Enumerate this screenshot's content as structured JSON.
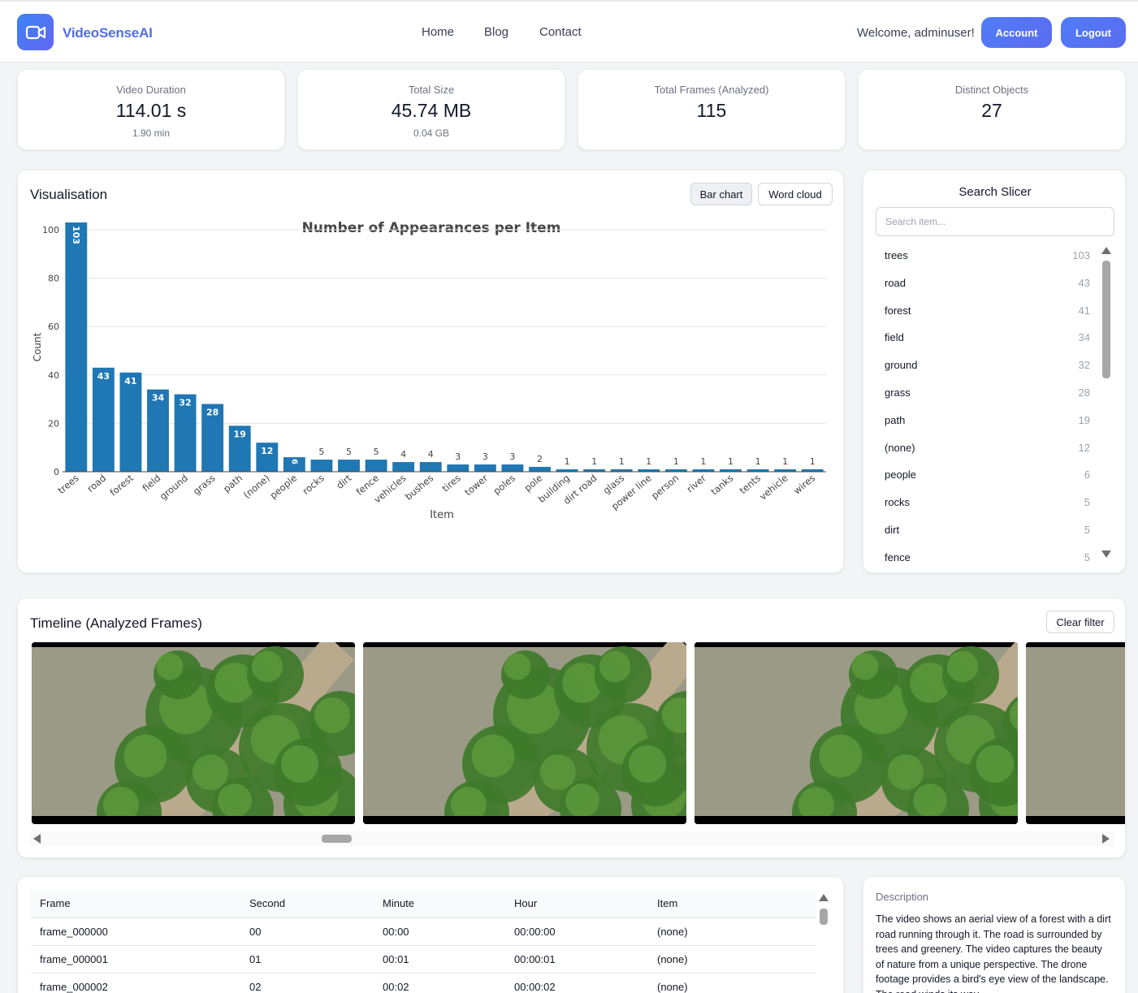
{
  "header": {
    "brand": "VideoSenseAI",
    "nav": [
      "Home",
      "Blog",
      "Contact"
    ],
    "welcome": "Welcome, adminuser!",
    "account_label": "Account",
    "logout_label": "Logout"
  },
  "stats": [
    {
      "label": "Video Duration",
      "value": "114.01 s",
      "sub": "1.90 min"
    },
    {
      "label": "Total Size",
      "value": "45.74 MB",
      "sub": "0.04 GB"
    },
    {
      "label": "Total Frames (Analyzed)",
      "value": "115",
      "sub": ""
    },
    {
      "label": "Distinct Objects",
      "value": "27",
      "sub": ""
    }
  ],
  "visualisation": {
    "title": "Visualisation",
    "bar_chart_label": "Bar chart",
    "word_cloud_label": "Word cloud",
    "active_view": "Bar chart"
  },
  "chart_data": {
    "type": "bar",
    "title": "Number of Appearances per Item",
    "xlabel": "Item",
    "ylabel": "Count",
    "ylim": [
      0,
      103
    ],
    "yticks": [
      0,
      20,
      40,
      60,
      80,
      100
    ],
    "grid": true,
    "color": "#1f77b4",
    "categories": [
      "trees",
      "road",
      "forest",
      "field",
      "ground",
      "grass",
      "path",
      "(none)",
      "people",
      "rocks",
      "dirt",
      "fence",
      "vehicles",
      "bushes",
      "tires",
      "tower",
      "poles",
      "pole",
      "building",
      "dirt road",
      "glass",
      "power line",
      "person",
      "river",
      "tanks",
      "tents",
      "vehicle",
      "wires"
    ],
    "values": [
      103,
      43,
      41,
      34,
      32,
      28,
      19,
      12,
      6,
      5,
      5,
      5,
      4,
      4,
      3,
      3,
      3,
      2,
      1,
      1,
      1,
      1,
      1,
      1,
      1,
      1,
      1,
      1
    ]
  },
  "slicer": {
    "title": "Search Slicer",
    "placeholder": "Search item...",
    "items": [
      {
        "label": "trees",
        "count": "103"
      },
      {
        "label": "road",
        "count": "43"
      },
      {
        "label": "forest",
        "count": "41"
      },
      {
        "label": "field",
        "count": "34"
      },
      {
        "label": "ground",
        "count": "32"
      },
      {
        "label": "grass",
        "count": "28"
      },
      {
        "label": "path",
        "count": "19"
      },
      {
        "label": "(none)",
        "count": "12"
      },
      {
        "label": "people",
        "count": "6"
      },
      {
        "label": "rocks",
        "count": "5"
      },
      {
        "label": "dirt",
        "count": "5"
      },
      {
        "label": "fence",
        "count": "5"
      }
    ]
  },
  "timeline": {
    "title": "Timeline (Analyzed Frames)",
    "clear_label": "Clear filter"
  },
  "table": {
    "columns": [
      "Frame",
      "Second",
      "Minute",
      "Hour",
      "Item"
    ],
    "rows": [
      [
        "frame_000000",
        "00",
        "00:00",
        "00:00:00",
        "(none)"
      ],
      [
        "frame_000001",
        "01",
        "00:01",
        "00:00:01",
        "(none)"
      ],
      [
        "frame_000002",
        "02",
        "00:02",
        "00:00:02",
        "(none)"
      ]
    ]
  },
  "description": {
    "label": "Description",
    "text": "The video shows an aerial view of a forest with a dirt road running through it. The road is surrounded by trees and greenery. The video captures the beauty of nature from a unique perspective. The drone footage provides a bird's eye view of the landscape. The road winds its way"
  },
  "colors": {
    "accent": "#4f6fe8",
    "bar": "#1f77b4"
  }
}
